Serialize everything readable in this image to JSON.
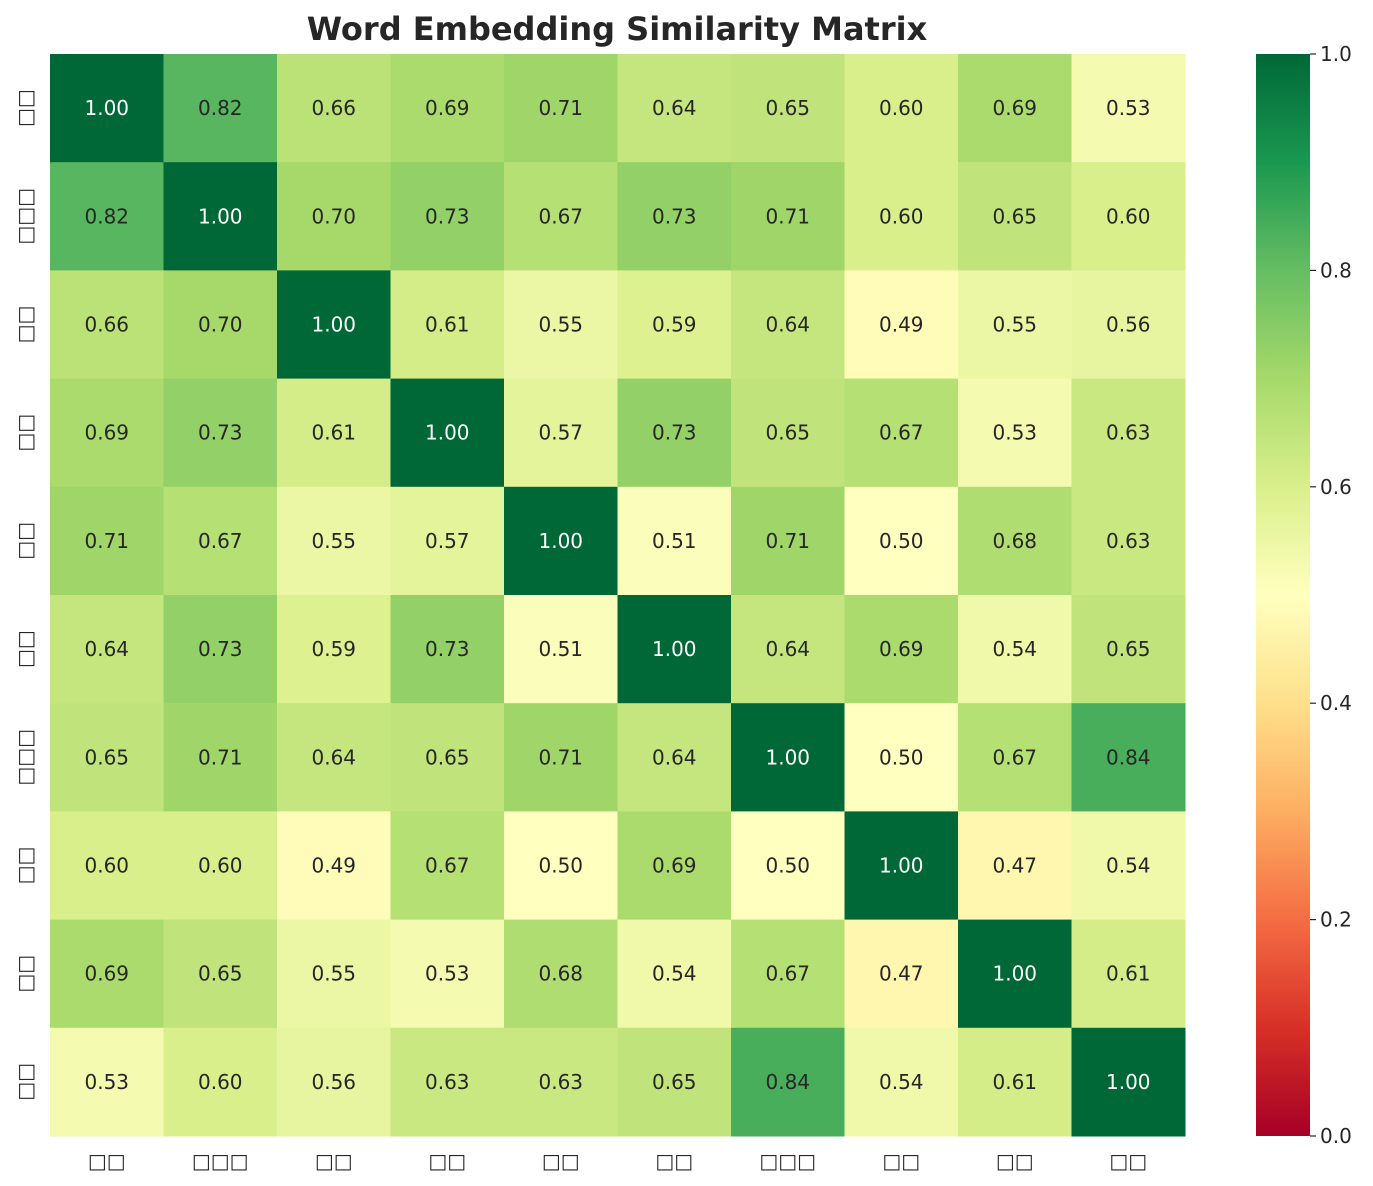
{
  "chart_data": {
    "type": "heatmap",
    "title": "Word Embedding Similarity Matrix",
    "xlabel": "",
    "ylabel": "",
    "x_categories": [
      "□□",
      "□□□",
      "□□",
      "□□",
      "□□",
      "□□",
      "□□□",
      "□□",
      "□□",
      "□□"
    ],
    "y_categories": [
      "□□",
      "□□□",
      "□□",
      "□□",
      "□□",
      "□□",
      "□□□",
      "□□",
      "□□",
      "□□"
    ],
    "values": [
      [
        1.0,
        0.82,
        0.66,
        0.69,
        0.71,
        0.64,
        0.65,
        0.6,
        0.69,
        0.53
      ],
      [
        0.82,
        1.0,
        0.7,
        0.73,
        0.67,
        0.73,
        0.71,
        0.6,
        0.65,
        0.6
      ],
      [
        0.66,
        0.7,
        1.0,
        0.61,
        0.55,
        0.59,
        0.64,
        0.49,
        0.55,
        0.56
      ],
      [
        0.69,
        0.73,
        0.61,
        1.0,
        0.57,
        0.73,
        0.65,
        0.67,
        0.53,
        0.63
      ],
      [
        0.71,
        0.67,
        0.55,
        0.57,
        1.0,
        0.51,
        0.71,
        0.5,
        0.68,
        0.63
      ],
      [
        0.64,
        0.73,
        0.59,
        0.73,
        0.51,
        1.0,
        0.64,
        0.69,
        0.54,
        0.65
      ],
      [
        0.65,
        0.71,
        0.64,
        0.65,
        0.71,
        0.64,
        1.0,
        0.5,
        0.67,
        0.84
      ],
      [
        0.6,
        0.6,
        0.49,
        0.67,
        0.5,
        0.69,
        0.5,
        1.0,
        0.47,
        0.54
      ],
      [
        0.69,
        0.65,
        0.55,
        0.53,
        0.68,
        0.54,
        0.67,
        0.47,
        1.0,
        0.61
      ],
      [
        0.53,
        0.6,
        0.56,
        0.63,
        0.63,
        0.65,
        0.84,
        0.54,
        0.61,
        1.0
      ]
    ],
    "value_format": "0.00",
    "colormap": "RdYlGn",
    "colormap_stops": [
      "#a50026",
      "#d73027",
      "#f46d43",
      "#fdae61",
      "#fee08b",
      "#ffffbf",
      "#d9ef8b",
      "#a6d96a",
      "#66bd63",
      "#1a9850",
      "#006837"
    ],
    "vmin": 0.0,
    "vmax": 1.0,
    "colorbar": {
      "ticks": [
        0.0,
        0.2,
        0.4,
        0.6,
        0.8,
        1.0
      ],
      "tick_labels": [
        "0.0",
        "0.2",
        "0.4",
        "0.6",
        "0.8",
        "1.0"
      ],
      "position": "right"
    },
    "annotation_dark_color": "#262626",
    "annotation_light_color": "#ffffff",
    "grid": false
  }
}
